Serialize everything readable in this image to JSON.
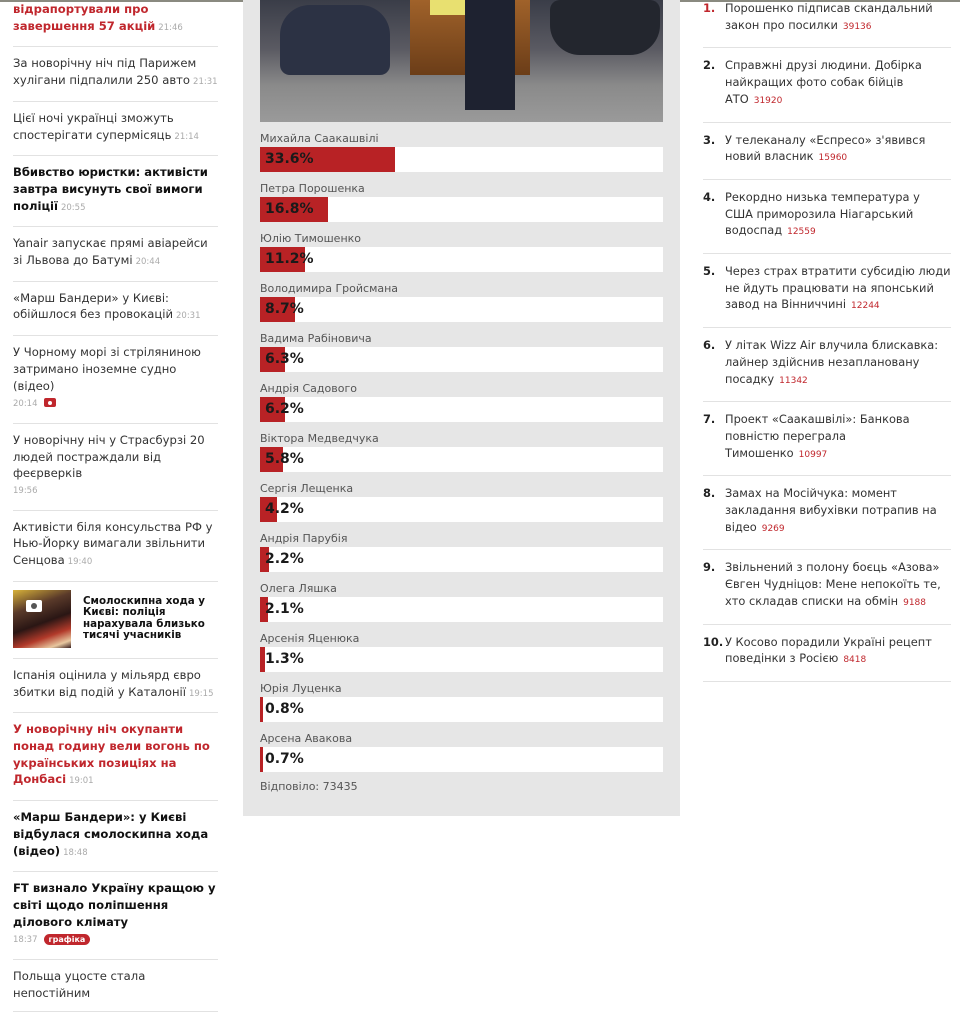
{
  "left_news": [
    {
      "title": "відрапортували про завершення 57 акцій",
      "time": "21:46",
      "style": "red"
    },
    {
      "title": "За новорічну ніч під Парижем хулігани підпалили 250 авто",
      "time": "21:31",
      "style": "normal"
    },
    {
      "title": "Цієї ночі українці зможуть спостерігати супермісяць",
      "time": "21:14",
      "style": "normal"
    },
    {
      "title": "Вбивство юристки: активісти завтра висунуть свої вимоги поліції",
      "time": "20:55",
      "style": "bold"
    },
    {
      "title": "Yanair запускає прямі авіарейси зі Львова до Батумі",
      "time": "20:44",
      "style": "normal"
    },
    {
      "title": "«Марш Бандери» у Києві: обійшлося без провокацій",
      "time": "20:31",
      "style": "normal"
    },
    {
      "title": "У Чорному морі зі стріляниною затримано іноземне судно (відео)",
      "time": "20:14",
      "style": "normal",
      "icon": "camera-icon"
    },
    {
      "title": "У новорічну ніч у Страсбурзі 20 людей постраждали від феєрверків",
      "time": "19:56",
      "style": "normal"
    },
    {
      "title": "Активісти біля консульства РФ у Нью-Йорку вимагали звільнити Сенцова",
      "time": "19:40",
      "style": "normal"
    },
    {
      "title": "Смолоскипна хода у Києві: поліція нарахувала близько тисячі учасників",
      "style": "photo",
      "icon": "camera-icon"
    },
    {
      "title": "Іспанія оцінила у мільярд євро збитки від подій у Каталонії",
      "time": "19:15",
      "style": "normal"
    },
    {
      "title": "У новорічну ніч окупанти понад годину вели вогонь по українських позиціях на Донбасі",
      "time": "19:01",
      "style": "red"
    },
    {
      "title": "«Марш Бандери»: у Києві відбулася смолоскипна хода (відео)",
      "time": "18:48",
      "style": "bold"
    },
    {
      "title": "FT визнало Україну кращою у світі щодо поліпшення ділового клімату",
      "time": "18:37",
      "style": "bold",
      "tag": "графіка"
    },
    {
      "title": "Польща уцосте стала непостійним",
      "style": "normal"
    }
  ],
  "poll": {
    "options": [
      {
        "name": "Михайла Саакашвілі",
        "percent": 33.6,
        "label": "33.6%"
      },
      {
        "name": "Петра Порошенка",
        "percent": 16.8,
        "label": "16.8%"
      },
      {
        "name": "Юлію Тимошенко",
        "percent": 11.2,
        "label": "11.2%"
      },
      {
        "name": "Володимира Гройсмана",
        "percent": 8.7,
        "label": "8.7%"
      },
      {
        "name": "Вадима Рабіновича",
        "percent": 6.3,
        "label": "6.3%"
      },
      {
        "name": "Андрія Садового",
        "percent": 6.2,
        "label": "6.2%"
      },
      {
        "name": "Віктора Медведчука",
        "percent": 5.8,
        "label": "5.8%"
      },
      {
        "name": "Сергія Лещенка",
        "percent": 4.2,
        "label": "4.2%"
      },
      {
        "name": "Андрія Парубія",
        "percent": 2.2,
        "label": "2.2%"
      },
      {
        "name": "Олега Ляшка",
        "percent": 2.1,
        "label": "2.1%"
      },
      {
        "name": "Арсенія Яценюка",
        "percent": 1.3,
        "label": "1.3%"
      },
      {
        "name": "Юрія Луценка",
        "percent": 0.8,
        "label": "0.8%"
      },
      {
        "name": "Арсена Авакова",
        "percent": 0.7,
        "label": "0.7%"
      }
    ],
    "answered": "Відповіло: 73435",
    "bar_color": "#b82225"
  },
  "top_news": [
    {
      "n": "1.",
      "title": "Порошенко підписав скандальний закон про посилки",
      "count": "39136"
    },
    {
      "n": "2.",
      "title": "Справжні друзі людини. Добірка найкращих фото собак бійців АТО",
      "count": "31920"
    },
    {
      "n": "3.",
      "title": "У телеканалу «Еспресо» з'явився новий власник",
      "count": "15960"
    },
    {
      "n": "4.",
      "title": "Рекордно низька температура у США приморозила Ніагарський водоспад",
      "count": "12559"
    },
    {
      "n": "5.",
      "title": "Через страх втратити субсидію люди не йдуть працювати на японський завод на Вінниччині",
      "count": "12244"
    },
    {
      "n": "6.",
      "title": "У літак Wizz Air влучила блискавка: лайнер здійснив незаплановану посадку",
      "count": "11342"
    },
    {
      "n": "7.",
      "title": "Проект «Саакашвілі»: Банкова повністю переграла Тимошенко",
      "count": "10997"
    },
    {
      "n": "8.",
      "title": "Замах на Мосійчука: момент закладання вибухівки потрапив на відео",
      "count": "9269"
    },
    {
      "n": "9.",
      "title": "Звільнений з полону боєць «Азова» Євген Чудніцов: Мене непокоїть те, хто складав списки на обмін",
      "count": "9188"
    },
    {
      "n": "10.",
      "title": "У Косово порадили Україні рецепт поведінки з Росією",
      "count": "8418"
    }
  ],
  "colors": {
    "accent": "#c0272d",
    "poll_bg": "#e6e6e6"
  }
}
